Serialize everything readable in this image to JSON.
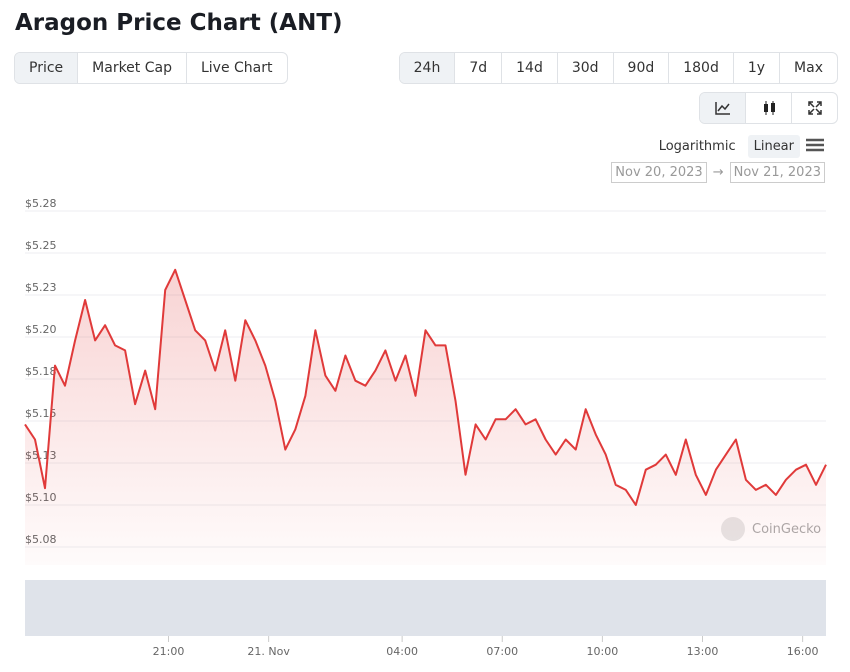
{
  "ui": {
    "title": "Aragon Price Chart (ANT)",
    "tabs": [
      "Price",
      "Market Cap",
      "Live Chart"
    ],
    "ranges": [
      "24h",
      "7d",
      "14d",
      "30d",
      "90d",
      "180d",
      "1y",
      "Max"
    ],
    "scales": [
      "Logarithmic",
      "Linear"
    ],
    "date_from": "Nov 20, 2023",
    "date_arrow": "→",
    "date_to": "Nov 21, 2023",
    "watermark": "CoinGecko"
  },
  "chart_data": {
    "type": "line",
    "color": "#e03a3a",
    "grid": true,
    "x": [
      16.7,
      17,
      17.3,
      17.6,
      17.9,
      18.2,
      18.5,
      18.8,
      19.1,
      19.4,
      19.7,
      20,
      20.3,
      20.6,
      20.9,
      21.2,
      21.5,
      21.8,
      22.1,
      22.4,
      22.7,
      23,
      23.3,
      23.6,
      23.9,
      24.2,
      24.5,
      24.8,
      25.1,
      25.4,
      25.7,
      26,
      26.3,
      26.6,
      26.9,
      27.2,
      27.5,
      27.8,
      28.1,
      28.4,
      28.7,
      29,
      29.3,
      29.6,
      29.9,
      30.2,
      30.5,
      30.8,
      31.1,
      31.4,
      31.7,
      32,
      32.3,
      32.6,
      32.9,
      33.2,
      33.5,
      33.8,
      34.1,
      34.4,
      34.7,
      35,
      35.3,
      35.6,
      35.9,
      36.2,
      36.5,
      36.8,
      37.1,
      37.4,
      37.7,
      38,
      38.3,
      38.6,
      38.9,
      39.2,
      39.5,
      39.8,
      40.1,
      40.4,
      40.7
    ],
    "values": [
      5.148,
      5.139,
      5.11,
      5.183,
      5.171,
      5.198,
      5.222,
      5.198,
      5.207,
      5.195,
      5.192,
      5.16,
      5.18,
      5.157,
      5.228,
      5.24,
      5.222,
      5.204,
      5.198,
      5.18,
      5.204,
      5.174,
      5.21,
      5.198,
      5.183,
      5.162,
      5.133,
      5.145,
      5.165,
      5.204,
      5.177,
      5.168,
      5.189,
      5.174,
      5.171,
      5.18,
      5.192,
      5.174,
      5.189,
      5.165,
      5.204,
      5.195,
      5.195,
      5.162,
      5.118,
      5.148,
      5.139,
      5.151,
      5.151,
      5.157,
      5.148,
      5.151,
      5.139,
      5.13,
      5.139,
      5.133,
      5.157,
      5.142,
      5.13,
      5.112,
      5.109,
      5.1,
      5.121,
      5.124,
      5.13,
      5.118,
      5.139,
      5.118,
      5.106,
      5.121,
      5.13,
      5.139,
      5.115,
      5.109,
      5.112,
      5.106,
      5.115,
      5.121,
      5.124,
      5.112,
      5.124
    ],
    "xlim": [
      16.7,
      40.7
    ],
    "xticks": [
      {
        "value": 21,
        "label": "21:00"
      },
      {
        "value": 24,
        "label": "21. Nov"
      },
      {
        "value": 28,
        "label": "04:00"
      },
      {
        "value": 31,
        "label": "07:00"
      },
      {
        "value": 34,
        "label": "10:00"
      },
      {
        "value": 37,
        "label": "13:00"
      },
      {
        "value": 40,
        "label": "16:00"
      }
    ],
    "ylim": [
      5.075,
      5.275
    ],
    "yticks": [
      {
        "value": 5.275,
        "label": "$5.28"
      },
      {
        "value": 5.25,
        "label": "$5.25"
      },
      {
        "value": 5.225,
        "label": "$5.23"
      },
      {
        "value": 5.2,
        "label": "$5.20"
      },
      {
        "value": 5.175,
        "label": "$5.18"
      },
      {
        "value": 5.15,
        "label": "$5.15"
      },
      {
        "value": 5.125,
        "label": "$5.13"
      },
      {
        "value": 5.1,
        "label": "$5.10"
      },
      {
        "value": 5.075,
        "label": "$5.08"
      }
    ]
  }
}
